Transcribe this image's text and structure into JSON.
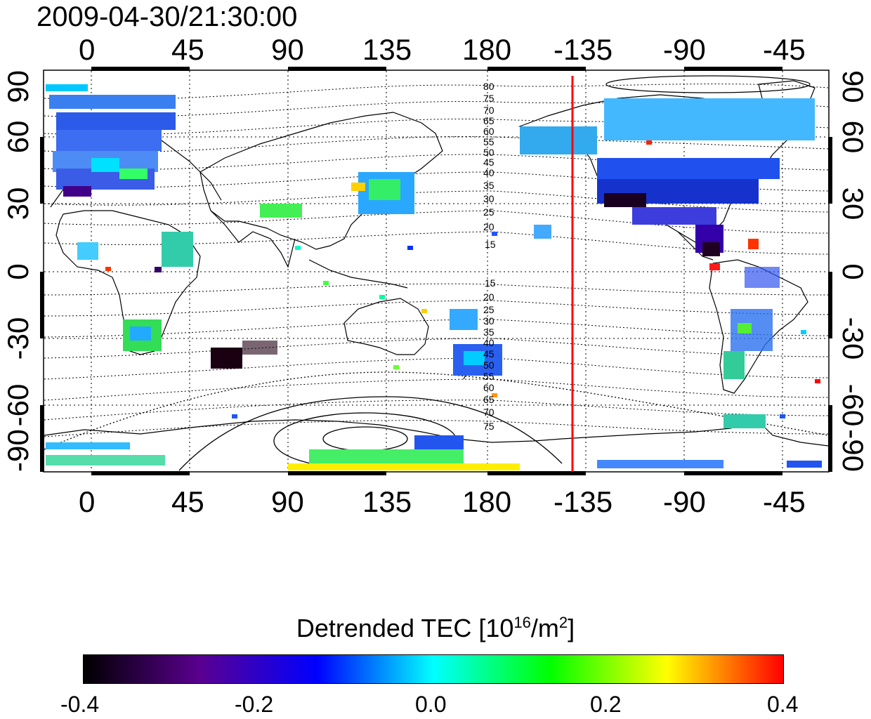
{
  "timestamp": "2009-04-30/21:30:00",
  "map": {
    "lon_tick_labels": [
      "0",
      "45",
      "90",
      "135",
      "180",
      "-135",
      "-90",
      "-45"
    ],
    "lat_tick_labels": [
      "90",
      "60",
      "30",
      "0",
      "-30",
      "-60",
      "-90"
    ],
    "contour_labels_north": [
      "80",
      "75",
      "70",
      "65",
      "60",
      "55",
      "50",
      "45",
      "40",
      "35",
      "30",
      "25",
      "20",
      "15"
    ],
    "contour_labels_south": [
      "15",
      "20",
      "25",
      "30",
      "35",
      "40",
      "45",
      "50",
      "55",
      "60",
      "65",
      "70",
      "75"
    ],
    "meridian_line_color": "#ff0000"
  },
  "colorbar": {
    "title_text": "Detrended TEC  [10",
    "title_exp": "16",
    "title_unit": "/m",
    "title_unit_exp": "2",
    "title_close": "]",
    "tick_labels": [
      "-0.4",
      "-0.2",
      "0.0",
      "0.2",
      "0.4"
    ],
    "stops": [
      "#000000",
      "#5a0090",
      "#0000ff",
      "#00ffff",
      "#00ff00",
      "#ffff00",
      "#ff0000"
    ]
  }
}
